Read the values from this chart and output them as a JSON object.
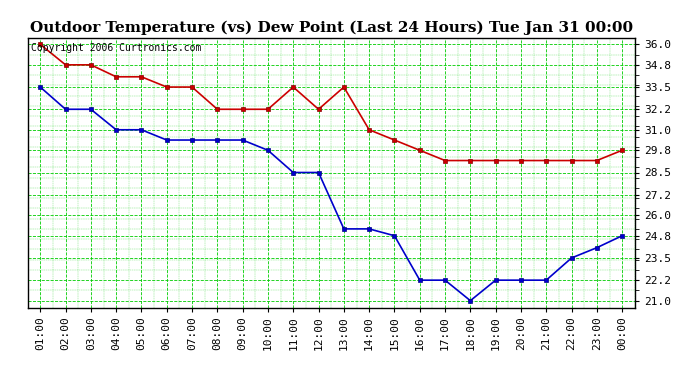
{
  "title": "Outdoor Temperature (vs) Dew Point (Last 24 Hours) Tue Jan 31 00:00",
  "copyright": "Copyright 2006 Curtronics.com",
  "x_labels": [
    "01:00",
    "02:00",
    "03:00",
    "04:00",
    "05:00",
    "06:00",
    "07:00",
    "08:00",
    "09:00",
    "10:00",
    "11:00",
    "12:00",
    "13:00",
    "14:00",
    "15:00",
    "16:00",
    "17:00",
    "18:00",
    "19:00",
    "20:00",
    "21:00",
    "22:00",
    "23:00",
    "00:00"
  ],
  "temp_data": [
    36.0,
    34.8,
    34.8,
    34.1,
    34.1,
    33.5,
    33.5,
    32.2,
    32.2,
    32.2,
    33.5,
    32.2,
    33.5,
    31.0,
    30.4,
    29.8,
    29.2,
    29.2,
    29.2,
    29.2,
    29.2,
    29.2,
    29.2,
    29.8
  ],
  "dew_data": [
    33.5,
    32.2,
    32.2,
    31.0,
    31.0,
    30.4,
    30.4,
    30.4,
    30.4,
    29.8,
    28.5,
    28.5,
    25.2,
    25.2,
    24.8,
    22.2,
    22.2,
    21.0,
    22.2,
    22.2,
    22.2,
    23.5,
    24.1,
    24.8
  ],
  "temp_color": "#cc0000",
  "dew_color": "#0000cc",
  "bg_color": "#ffffff",
  "plot_bg": "#ffffff",
  "grid_color": "#00cc00",
  "ylim_min": 20.6,
  "ylim_max": 36.4,
  "yticks": [
    21.0,
    22.2,
    23.5,
    24.8,
    26.0,
    27.2,
    28.5,
    29.8,
    31.0,
    32.2,
    33.5,
    34.8,
    36.0
  ],
  "title_fontsize": 11,
  "tick_fontsize": 8,
  "copyright_fontsize": 7,
  "linewidth": 1.2,
  "markersize": 3.5
}
